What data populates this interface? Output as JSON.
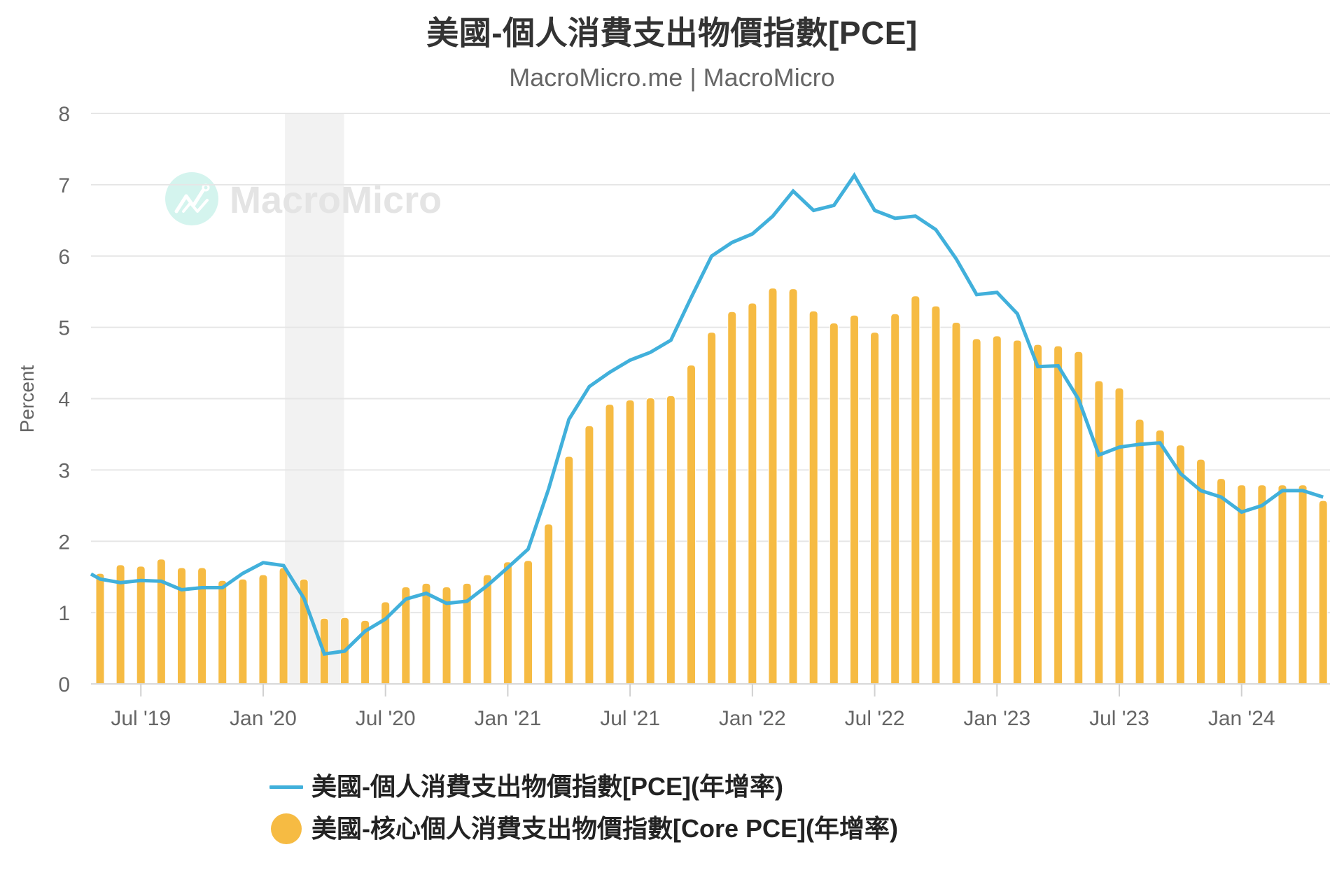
{
  "header": {
    "title": "美國-個人消費支出物價指數[PCE]",
    "subtitle": "MacroMicro.me | MacroMicro"
  },
  "watermark": {
    "text": "MacroMicro",
    "icon": "macromicro-logo-icon"
  },
  "legend": {
    "items": [
      {
        "label": "美國-個人消費支出物價指數[PCE](年增率)",
        "symbol": "line",
        "color": "#41b0db"
      },
      {
        "label": "美國-核心個人消費支出物價指數[Core PCE](年增率)",
        "symbol": "circle",
        "color": "#f6bb43"
      }
    ]
  },
  "colors": {
    "pce_line": "#41b0db",
    "core_bar": "#f6bb43",
    "grid": "#e6e6e6",
    "recession_band": "#f2f2f2",
    "axis_text": "#666666",
    "title_text": "#333333",
    "watermark_text": "#e4e4e4",
    "watermark_circle": "#d4f4ee"
  },
  "chart_data": {
    "type": "bar",
    "title": "美國-個人消費支出物價指數[PCE]",
    "subtitle": "MacroMicro.me | MacroMicro",
    "xlabel": "",
    "ylabel": "Percent",
    "ylim": [
      0,
      8
    ],
    "grid": true,
    "legend_position": "bottom",
    "y_ticks": [
      "0",
      "1",
      "2",
      "3",
      "4",
      "5",
      "6",
      "7",
      "8"
    ],
    "x_ticks": [
      {
        "label": "Jul '19",
        "index": 2
      },
      {
        "label": "Jan '20",
        "index": 8
      },
      {
        "label": "Jul '20",
        "index": 14
      },
      {
        "label": "Jan '21",
        "index": 20
      },
      {
        "label": "Jul '21",
        "index": 26
      },
      {
        "label": "Jan '22",
        "index": 32
      },
      {
        "label": "Jul '22",
        "index": 38
      },
      {
        "label": "Jan '23",
        "index": 44
      },
      {
        "label": "Jul '23",
        "index": 50
      },
      {
        "label": "Jan '24",
        "index": 56
      }
    ],
    "categories": [
      "May 2019",
      "Jun 2019",
      "Jul 2019",
      "Aug 2019",
      "Sep 2019",
      "Oct 2019",
      "Nov 2019",
      "Dec 2019",
      "Jan 2020",
      "Feb 2020",
      "Mar 2020",
      "Apr 2020",
      "May 2020",
      "Jun 2020",
      "Jul 2020",
      "Aug 2020",
      "Sep 2020",
      "Oct 2020",
      "Nov 2020",
      "Dec 2020",
      "Jan 2021",
      "Feb 2021",
      "Mar 2021",
      "Apr 2021",
      "May 2021",
      "Jun 2021",
      "Jul 2021",
      "Aug 2021",
      "Sep 2021",
      "Oct 2021",
      "Nov 2021",
      "Dec 2021",
      "Jan 2022",
      "Feb 2022",
      "Mar 2022",
      "Apr 2022",
      "May 2022",
      "Jun 2022",
      "Jul 2022",
      "Aug 2022",
      "Sep 2022",
      "Oct 2022",
      "Nov 2022",
      "Dec 2022",
      "Jan 2023",
      "Feb 2023",
      "Mar 2023",
      "Apr 2023",
      "May 2023",
      "Jun 2023",
      "Jul 2023",
      "Aug 2023",
      "Sep 2023",
      "Oct 2023",
      "Nov 2023",
      "Dec 2023",
      "Jan 2024",
      "Feb 2024",
      "Mar 2024",
      "Apr 2024",
      "May 2024"
    ],
    "series": [
      {
        "name": "美國-核心個人消費支出物價指數[Core PCE](年增率)",
        "type": "bar",
        "color": "#f6bb43",
        "values": [
          1.55,
          1.67,
          1.65,
          1.75,
          1.63,
          1.63,
          1.45,
          1.47,
          1.53,
          1.63,
          1.47,
          0.92,
          0.93,
          0.89,
          1.15,
          1.36,
          1.41,
          1.36,
          1.41,
          1.53,
          1.71,
          1.73,
          2.24,
          3.19,
          3.62,
          3.92,
          3.98,
          4.01,
          4.04,
          4.47,
          4.93,
          5.22,
          5.34,
          5.55,
          5.54,
          5.23,
          5.06,
          5.17,
          4.93,
          5.19,
          5.44,
          5.3,
          5.07,
          4.84,
          4.88,
          4.82,
          4.76,
          4.74,
          4.66,
          4.25,
          4.15,
          3.71,
          3.56,
          3.35,
          3.15,
          2.88,
          2.79,
          2.79,
          2.79,
          2.79,
          2.57
        ]
      },
      {
        "name": "美國-個人消費支出物價指數[PCE](年增率)",
        "type": "line",
        "color": "#41b0db",
        "left_edge_value": 1.54,
        "values": [
          1.47,
          1.42,
          1.45,
          1.44,
          1.32,
          1.35,
          1.35,
          1.55,
          1.7,
          1.66,
          1.2,
          0.42,
          0.46,
          0.74,
          0.91,
          1.19,
          1.27,
          1.13,
          1.16,
          1.38,
          1.63,
          1.89,
          2.73,
          3.71,
          4.17,
          4.37,
          4.54,
          4.65,
          4.82,
          5.42,
          6.0,
          6.19,
          6.31,
          6.56,
          6.91,
          6.64,
          6.71,
          7.13,
          6.64,
          6.53,
          6.56,
          6.37,
          5.96,
          5.46,
          5.49,
          5.19,
          4.45,
          4.46,
          3.99,
          3.21,
          3.32,
          3.36,
          3.38,
          2.95,
          2.71,
          2.62,
          2.41,
          2.5,
          2.71,
          2.71,
          2.62
        ]
      }
    ],
    "shaded_band": {
      "from": "Feb 2020",
      "to": "Apr 2020",
      "from_index": 9,
      "to_index": 12
    }
  }
}
